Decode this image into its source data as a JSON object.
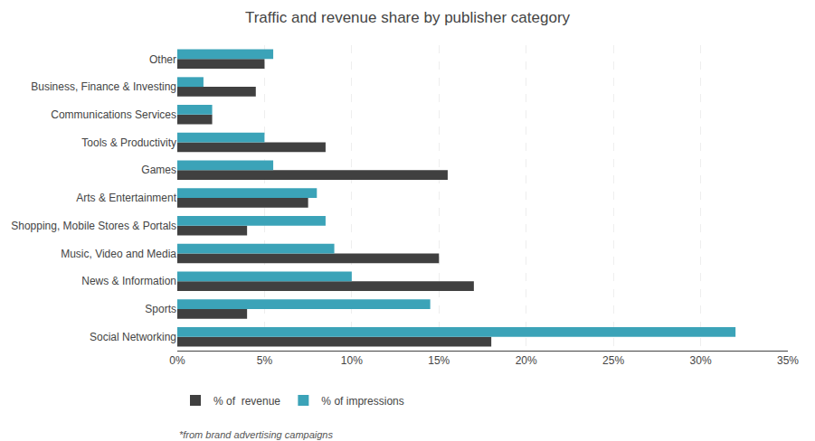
{
  "chart_data": {
    "type": "bar",
    "orientation": "horizontal",
    "title": "Traffic and revenue share by publisher category",
    "categories": [
      "Social Networking",
      "Sports",
      "News & Information",
      "Music, Video and Media",
      "Shopping, Mobile Stores & Portals",
      "Arts & Entertainment",
      "Games",
      "Tools & Productivity",
      "Communications Services",
      "Business, Finance & Investing",
      "Other"
    ],
    "series": [
      {
        "name": "% of  revenue",
        "color": "#404040",
        "values": [
          18,
          4,
          17,
          15,
          4,
          7.5,
          15.5,
          8.5,
          2,
          4.5,
          5
        ]
      },
      {
        "name": "% of impressions",
        "color": "#3ba3b8",
        "values": [
          32,
          14.5,
          10,
          9,
          8.5,
          8,
          5.5,
          5,
          2,
          1.5,
          5.5
        ]
      }
    ],
    "xlim": [
      0,
      35
    ],
    "xticks": [
      {
        "value": 0,
        "label": "0%"
      },
      {
        "value": 5,
        "label": "5%"
      },
      {
        "value": 10,
        "label": "10%"
      },
      {
        "value": 15,
        "label": "15%"
      },
      {
        "value": 20,
        "label": "20%"
      },
      {
        "value": 25,
        "label": "25%"
      },
      {
        "value": 30,
        "label": "30%"
      },
      {
        "value": 35,
        "label": "35%"
      }
    ],
    "grid": true,
    "legend": "bottom",
    "annotations": [
      "*from brand advertising campaigns"
    ]
  }
}
